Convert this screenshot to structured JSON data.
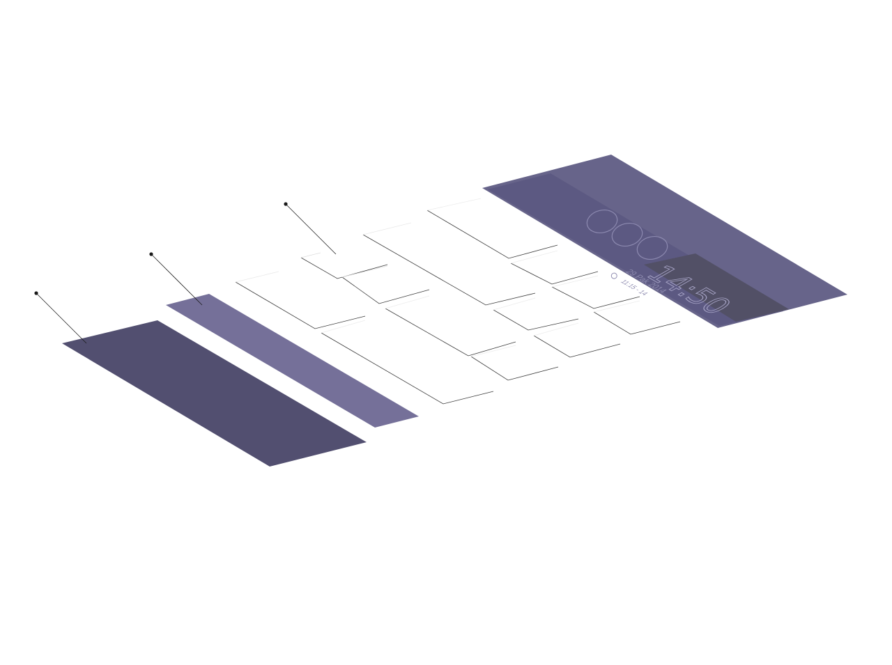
{
  "screen": {
    "clock": "14:50",
    "date": "29 Pak 2014",
    "status": "11:15 - 14"
  },
  "colors": {
    "base_layer": "#524f70",
    "bar_layer": "#757099",
    "card_layer": "#ffffff",
    "screen_layer": "#67648a",
    "screen_header": "#5a5780",
    "screen_footer": "#525066",
    "callout": "#1a1a1a"
  },
  "icons": {
    "status_icon": "alarm-icon"
  }
}
